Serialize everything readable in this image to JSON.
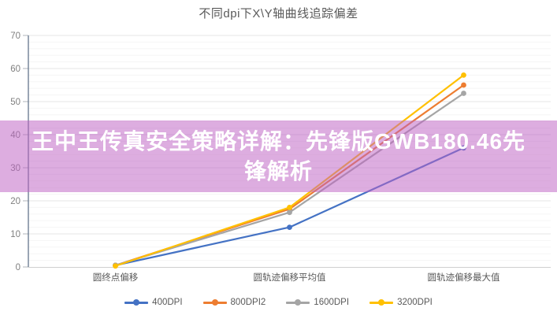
{
  "chart_data": {
    "type": "line",
    "title": "不同dpi下X\\Y轴曲线追踪偏差",
    "categories": [
      "圆终点偏移",
      "圆轨迹偏移平均值",
      "圆轨迹偏移最大值"
    ],
    "series": [
      {
        "name": "400DPI",
        "color": "#4472c4",
        "values": [
          0.5,
          12,
          36
        ]
      },
      {
        "name": "800DPI2",
        "color": "#ed7d31",
        "values": [
          0.5,
          17.5,
          55
        ]
      },
      {
        "name": "1600DPI",
        "color": "#a5a5a5",
        "values": [
          0.5,
          16.5,
          52.5
        ]
      },
      {
        "name": "3200DPI",
        "color": "#ffc000",
        "values": [
          0.3,
          18,
          58
        ]
      }
    ],
    "xlabel": "",
    "ylabel": "",
    "ylim": [
      0,
      70
    ],
    "y_major_ticks": [
      0,
      10,
      20,
      30,
      40,
      50,
      60,
      70
    ],
    "y_minor_step": 2,
    "grid": "horizontal",
    "legend_position": "bottom",
    "marker": "circle"
  },
  "overlay": {
    "headline": "王中王传真安全策略详解：先锋版GWB180.46先锋解析",
    "background_color": "rgba(190,98,195,0.52)",
    "text_color": "#ffffff"
  },
  "style_colors": {
    "title_text": "#595959",
    "tick_label": "#7f7f7f",
    "category_label": "#595959",
    "grid_major": "#e4e4e4",
    "grid_minor": "#f5f5f5",
    "x_axis_line": "#cfcfcf",
    "y_axis_line": "#64758c",
    "tick_mark": "#b0b5bb"
  }
}
